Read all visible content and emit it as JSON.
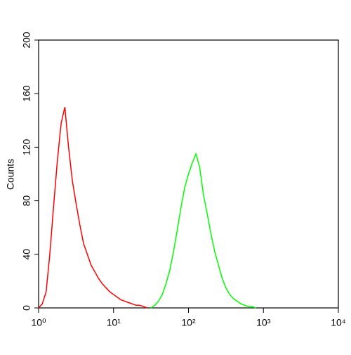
{
  "chart_data": {
    "type": "line",
    "y_label": "Counts",
    "xscale": "log",
    "xlim": [
      1,
      10000
    ],
    "ylim": [
      0,
      200
    ],
    "xticks": [
      {
        "value": 1,
        "label": "10⁰"
      },
      {
        "value": 10,
        "label": "10¹"
      },
      {
        "value": 100,
        "label": "10²"
      },
      {
        "value": 1000,
        "label": "10³"
      },
      {
        "value": 10000,
        "label": "10⁴"
      }
    ],
    "yticks": [
      0,
      40,
      80,
      120,
      160,
      200
    ],
    "series": [
      {
        "color": "#ff0000",
        "x": [
          1,
          1.12,
          1.26,
          1.41,
          1.58,
          1.78,
          2,
          2.24,
          2.51,
          2.82,
          3.16,
          3.55,
          3.98,
          4.47,
          5.01,
          5.62,
          6.31,
          7.08,
          7.94,
          8.91,
          10,
          11.2,
          12.6,
          14.1,
          15.8,
          17.8,
          20,
          22.4,
          25.1,
          28.2
        ],
        "values": [
          0,
          3,
          12,
          40,
          75,
          110,
          138,
          150,
          120,
          95,
          78,
          62,
          48,
          40,
          32,
          27,
          22,
          18,
          15,
          12,
          10,
          8,
          6,
          5,
          4,
          3,
          2,
          2,
          1,
          0
        ]
      },
      {
        "color": "#00ff00",
        "x": [
          31.6,
          35.5,
          39.8,
          44.7,
          50.1,
          56.2,
          63.1,
          70.8,
          79.4,
          89.1,
          100,
          112,
          126,
          141,
          158,
          178,
          200,
          224,
          251,
          282,
          316,
          355,
          398,
          447,
          501,
          562,
          631,
          708,
          794
        ],
        "values": [
          0,
          2,
          5,
          10,
          18,
          28,
          42,
          58,
          75,
          90,
          100,
          108,
          115,
          105,
          85,
          70,
          55,
          42,
          32,
          22,
          15,
          10,
          7,
          5,
          3,
          2,
          1,
          1,
          0
        ]
      }
    ]
  }
}
